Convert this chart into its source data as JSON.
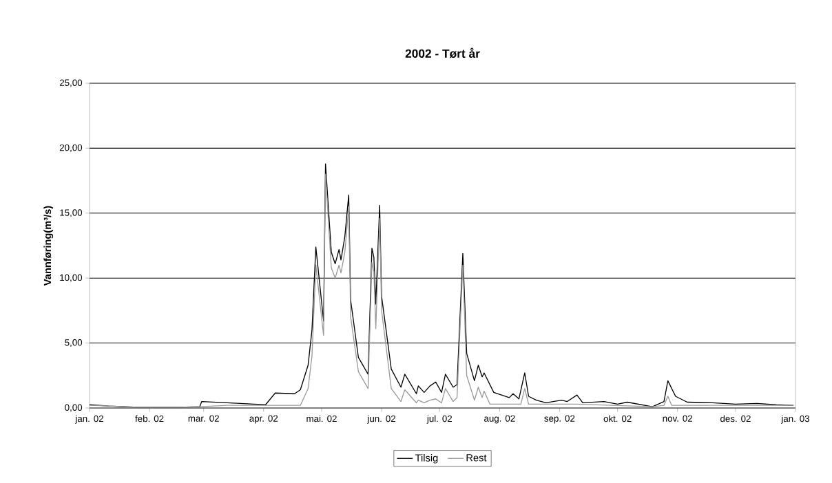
{
  "chart_data": {
    "type": "line",
    "title": "2002 - Tørt år",
    "ylabel": "Vannføring(m³/s)",
    "xlim": [
      "2002-01-01",
      "2003-01-01"
    ],
    "xticks": [
      {
        "value": "2002-01-01",
        "label": "jan. 02"
      },
      {
        "value": "2002-02-01",
        "label": "feb. 02"
      },
      {
        "value": "2002-03-01",
        "label": "mar. 02"
      },
      {
        "value": "2002-04-01",
        "label": "apr. 02"
      },
      {
        "value": "2002-05-01",
        "label": "mai. 02"
      },
      {
        "value": "2002-06-01",
        "label": "jun. 02"
      },
      {
        "value": "2002-07-01",
        "label": "jul. 02"
      },
      {
        "value": "2002-08-01",
        "label": "aug. 02"
      },
      {
        "value": "2002-09-01",
        "label": "sep. 02"
      },
      {
        "value": "2002-10-01",
        "label": "okt. 02"
      },
      {
        "value": "2002-11-01",
        "label": "nov. 02"
      },
      {
        "value": "2002-12-01",
        "label": "des. 02"
      },
      {
        "value": "2003-01-01",
        "label": "jan. 03"
      }
    ],
    "ylim": [
      0,
      25
    ],
    "yticks": [
      {
        "value": 0,
        "label": "0,00"
      },
      {
        "value": 5,
        "label": "5,00"
      },
      {
        "value": 10,
        "label": "10,00"
      },
      {
        "value": 15,
        "label": "15,00"
      },
      {
        "value": 20,
        "label": "20,00"
      },
      {
        "value": 25,
        "label": "25,00"
      }
    ],
    "grid": "y",
    "legend": "bottom",
    "marker": "none",
    "line_style": "solid",
    "series": [
      {
        "name": "Tilsig",
        "color": "#000000",
        "x": [
          "2002-01-01",
          "2002-01-11",
          "2002-01-26",
          "2002-02-16",
          "2002-02-27",
          "2002-02-28",
          "2002-03-13",
          "2002-03-27",
          "2002-04-02",
          "2002-04-07",
          "2002-04-17",
          "2002-04-20",
          "2002-04-24",
          "2002-04-26",
          "2002-04-28",
          "2002-05-02",
          "2002-05-03",
          "2002-05-06",
          "2002-05-08",
          "2002-05-10",
          "2002-05-11",
          "2002-05-13",
          "2002-05-15",
          "2002-05-16",
          "2002-05-20",
          "2002-05-25",
          "2002-05-27",
          "2002-05-28",
          "2002-05-29",
          "2002-05-31",
          "2002-06-01",
          "2002-06-06",
          "2002-06-11",
          "2002-06-13",
          "2002-06-19",
          "2002-06-20",
          "2002-06-23",
          "2002-06-26",
          "2002-06-29",
          "2002-07-02",
          "2002-07-04",
          "2002-07-08",
          "2002-07-10",
          "2002-07-13",
          "2002-07-15",
          "2002-07-19",
          "2002-07-21",
          "2002-07-23",
          "2002-07-24",
          "2002-07-29",
          "2002-08-06",
          "2002-08-08",
          "2002-08-11",
          "2002-08-14",
          "2002-08-16",
          "2002-08-20",
          "2002-08-25",
          "2002-09-02",
          "2002-09-05",
          "2002-09-10",
          "2002-09-13",
          "2002-09-24",
          "2002-10-01",
          "2002-10-06",
          "2002-10-19",
          "2002-10-25",
          "2002-10-27",
          "2002-10-31",
          "2002-11-06",
          "2002-11-19",
          "2002-12-01",
          "2002-12-12",
          "2002-12-22",
          "2002-12-31"
        ],
        "values": [
          0.25,
          0.15,
          0.05,
          0.05,
          0.1,
          0.5,
          0.4,
          0.3,
          0.25,
          1.15,
          1.1,
          1.4,
          3.3,
          6.0,
          12.4,
          6.7,
          18.8,
          12.0,
          11.1,
          12.2,
          11.4,
          13.2,
          16.4,
          8.3,
          3.9,
          2.6,
          12.3,
          11.6,
          8.0,
          15.6,
          8.6,
          3.0,
          1.6,
          2.6,
          1.1,
          1.7,
          1.2,
          1.7,
          2.0,
          1.2,
          2.6,
          1.6,
          1.8,
          11.9,
          4.2,
          2.1,
          3.3,
          2.4,
          2.7,
          1.2,
          0.8,
          1.1,
          0.7,
          2.7,
          0.9,
          0.6,
          0.4,
          0.6,
          0.5,
          1.0,
          0.4,
          0.5,
          0.3,
          0.45,
          0.1,
          0.5,
          2.1,
          0.9,
          0.45,
          0.4,
          0.3,
          0.35,
          0.25,
          0.2
        ]
      },
      {
        "name": "Rest",
        "color": "#999999",
        "x": [
          "2002-01-01",
          "2002-01-11",
          "2002-01-26",
          "2002-02-16",
          "2002-02-27",
          "2002-03-13",
          "2002-04-07",
          "2002-04-20",
          "2002-04-24",
          "2002-04-26",
          "2002-04-28",
          "2002-05-02",
          "2002-05-03",
          "2002-05-06",
          "2002-05-08",
          "2002-05-10",
          "2002-05-11",
          "2002-05-13",
          "2002-05-15",
          "2002-05-16",
          "2002-05-20",
          "2002-05-25",
          "2002-05-27",
          "2002-05-28",
          "2002-05-29",
          "2002-05-31",
          "2002-06-01",
          "2002-06-06",
          "2002-06-11",
          "2002-06-13",
          "2002-06-19",
          "2002-06-20",
          "2002-06-23",
          "2002-06-26",
          "2002-06-29",
          "2002-07-02",
          "2002-07-04",
          "2002-07-08",
          "2002-07-10",
          "2002-07-13",
          "2002-07-15",
          "2002-07-19",
          "2002-07-21",
          "2002-07-23",
          "2002-07-24",
          "2002-07-27",
          "2002-08-06",
          "2002-08-12",
          "2002-08-14",
          "2002-08-16",
          "2002-09-10",
          "2002-10-19",
          "2002-10-25",
          "2002-10-27",
          "2002-10-29",
          "2002-11-19",
          "2002-12-12",
          "2002-12-31"
        ],
        "values": [
          0.2,
          0.15,
          0.05,
          0.05,
          0.1,
          0.2,
          0.2,
          0.2,
          1.5,
          4.0,
          11.0,
          5.6,
          18.0,
          10.8,
          10.0,
          11.0,
          10.4,
          12.0,
          15.5,
          7.0,
          2.8,
          1.5,
          11.2,
          10.5,
          6.1,
          14.6,
          7.5,
          1.5,
          0.5,
          1.4,
          0.4,
          0.6,
          0.4,
          0.6,
          0.7,
          0.4,
          1.5,
          0.5,
          0.8,
          11.0,
          2.5,
          0.6,
          1.6,
          0.8,
          1.3,
          0.3,
          0.3,
          0.3,
          1.5,
          0.3,
          0.3,
          0.1,
          0.2,
          0.9,
          0.2,
          0.2,
          0.2,
          0.2
        ]
      }
    ]
  }
}
